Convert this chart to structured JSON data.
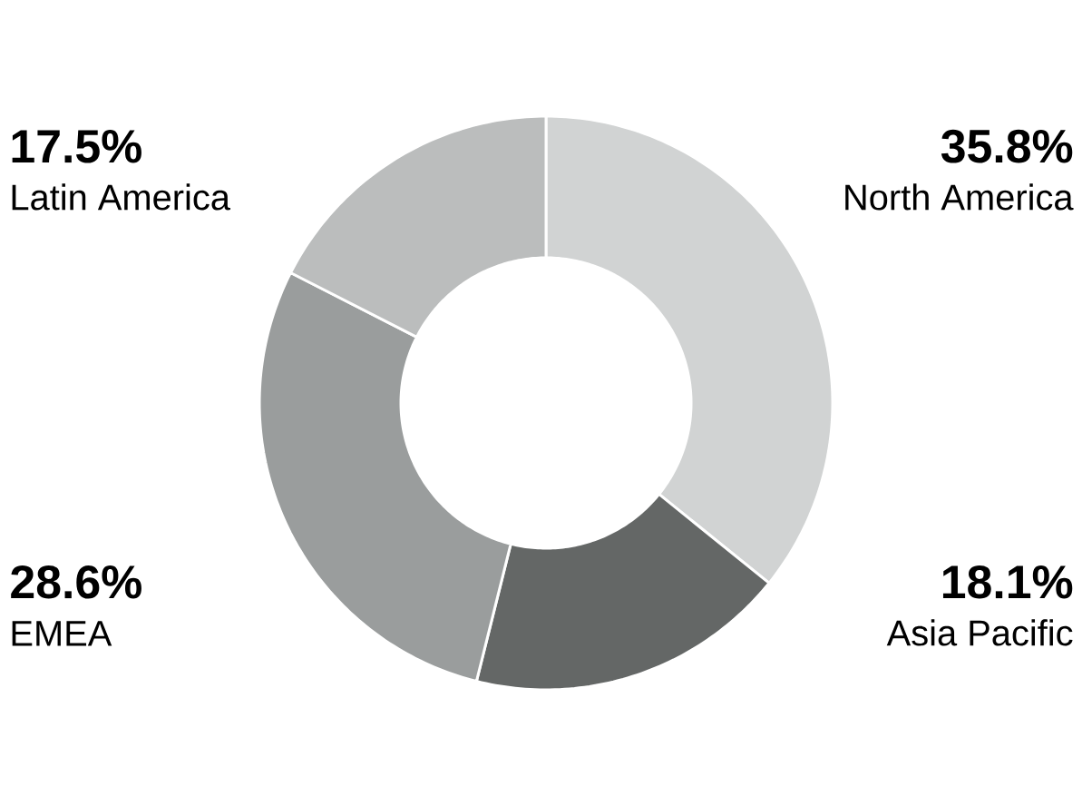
{
  "chart_data": {
    "type": "donut",
    "categories": [
      "North America",
      "Asia Pacific",
      "EMEA",
      "Latin America"
    ],
    "values": [
      35.8,
      18.1,
      28.6,
      17.5
    ],
    "value_labels": [
      "35.8%",
      "18.1%",
      "28.6%",
      "17.5%"
    ],
    "colors": [
      "#d1d3d3",
      "#646766",
      "#9a9d9d",
      "#bbbdbd"
    ]
  }
}
